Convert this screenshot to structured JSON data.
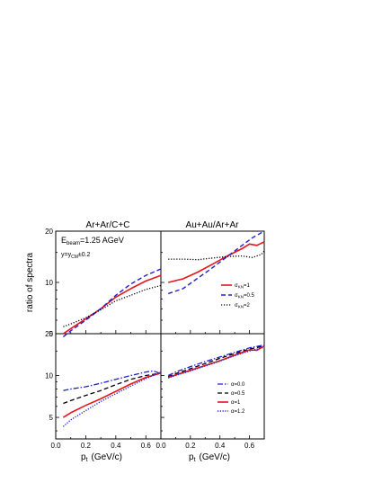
{
  "figure": {
    "ylabel": "ratio of spectra",
    "xlabel_left": "p",
    "xlabel_left_sub": "t",
    "xlabel_left_unit": "(GeV/c)",
    "xlabel_right": "p",
    "xlabel_right_sub": "t",
    "xlabel_right_unit": "(GeV/c)",
    "title_left": "Ar+Ar/C+C",
    "title_right": "Au+Au/Ar+Ar",
    "ebeam_label": "E",
    "ebeam_sub": "beam",
    "ebeam_value": "=1.25  AGeV",
    "y_label_part": "y=y",
    "y_label_sub": "CM",
    "y_label_rest": "±0.2"
  },
  "styles": {
    "red": "#e8141c",
    "blue": "#1f1fd6",
    "black": "#000000",
    "blue_dotted": "#2727e0"
  },
  "chart_data": [
    {
      "id": "top-left",
      "type": "line",
      "title": "Ar+Ar/C+C",
      "xlim": [
        0,
        0.7
      ],
      "ylim": [
        5,
        20
      ],
      "yscale": "log",
      "x_ticks": [
        "0.0",
        "0.2",
        "0.4",
        "0.6"
      ],
      "y_ticks": [
        "5",
        "10",
        "20"
      ],
      "series": [
        {
          "style": "red-solid",
          "x": [
            0.05,
            0.1,
            0.2,
            0.3,
            0.4,
            0.5,
            0.6,
            0.7
          ],
          "y": [
            5.0,
            5.35,
            6.1,
            7.0,
            8.2,
            9.2,
            10.2,
            11.0
          ]
        },
        {
          "style": "blue-dashed",
          "x": [
            0.05,
            0.1,
            0.2,
            0.3,
            0.4,
            0.5,
            0.6,
            0.7
          ],
          "y": [
            4.8,
            5.2,
            6.0,
            7.0,
            8.4,
            9.8,
            11.0,
            12.0
          ]
        },
        {
          "style": "black-dotted",
          "x": [
            0.05,
            0.1,
            0.2,
            0.3,
            0.4,
            0.5,
            0.6,
            0.7
          ],
          "y": [
            5.5,
            5.7,
            6.2,
            6.9,
            7.8,
            8.4,
            9.1,
            9.6
          ]
        }
      ]
    },
    {
      "id": "top-right",
      "type": "line",
      "title": "Au+Au/Ar+Ar",
      "xlim": [
        0,
        0.7
      ],
      "ylim": [
        5,
        20
      ],
      "yscale": "log",
      "x_ticks": [
        "0.0",
        "0.2",
        "0.4",
        "0.6"
      ],
      "y_ticks": [],
      "legend": {
        "entries": [
          {
            "style": "red-solid",
            "label_main": "σ",
            "label_sub": "KN",
            "label_rest": "=1"
          },
          {
            "style": "blue-dashed",
            "label_main": "σ",
            "label_sub": "KN",
            "label_rest": "=0.5"
          },
          {
            "style": "black-dotted",
            "label_main": "σ",
            "label_sub": "KN",
            "label_rest": "=2"
          }
        ]
      },
      "series": [
        {
          "style": "red-solid",
          "x": [
            0.05,
            0.15,
            0.25,
            0.35,
            0.45,
            0.55,
            0.6,
            0.65,
            0.7
          ],
          "y": [
            10.0,
            10.5,
            11.5,
            12.8,
            14.3,
            15.8,
            16.8,
            16.5,
            17.3
          ]
        },
        {
          "style": "blue-dashed",
          "x": [
            0.05,
            0.15,
            0.25,
            0.35,
            0.45,
            0.55,
            0.62,
            0.7
          ],
          "y": [
            8.6,
            9.2,
            10.6,
            12.2,
            14.2,
            16.5,
            18.3,
            20.0
          ]
        },
        {
          "style": "black-dotted",
          "x": [
            0.05,
            0.15,
            0.25,
            0.35,
            0.45,
            0.55,
            0.62,
            0.68,
            0.7
          ],
          "y": [
            13.7,
            13.7,
            13.6,
            13.9,
            14.2,
            14.3,
            14.0,
            14.6,
            15.3
          ]
        }
      ]
    },
    {
      "id": "bottom-left",
      "type": "line",
      "xlim": [
        0,
        0.7
      ],
      "ylim": [
        3.5,
        20
      ],
      "yscale": "log",
      "x_ticks": [
        "0.0",
        "0.2",
        "0.4",
        "0.6"
      ],
      "y_ticks": [
        "5",
        "10",
        "20"
      ],
      "series": [
        {
          "style": "blue-dashdot",
          "x": [
            0.05,
            0.1,
            0.2,
            0.3,
            0.4,
            0.5,
            0.6,
            0.65,
            0.7
          ],
          "y": [
            7.8,
            8.0,
            8.3,
            8.8,
            9.4,
            10.0,
            10.6,
            10.8,
            10.3
          ]
        },
        {
          "style": "black-dashed",
          "x": [
            0.05,
            0.1,
            0.2,
            0.3,
            0.4,
            0.5,
            0.6,
            0.7
          ],
          "y": [
            6.3,
            6.6,
            7.2,
            7.8,
            8.6,
            9.4,
            10.0,
            10.4
          ]
        },
        {
          "style": "red-solid",
          "x": [
            0.05,
            0.1,
            0.2,
            0.3,
            0.4,
            0.5,
            0.6,
            0.7
          ],
          "y": [
            5.0,
            5.4,
            6.1,
            6.8,
            7.7,
            8.7,
            9.7,
            10.4
          ]
        },
        {
          "style": "blue-dotted",
          "x": [
            0.05,
            0.1,
            0.2,
            0.3,
            0.4,
            0.5,
            0.6,
            0.7
          ],
          "y": [
            4.3,
            4.8,
            5.6,
            6.5,
            7.4,
            8.4,
            9.5,
            10.6
          ]
        }
      ]
    },
    {
      "id": "bottom-right",
      "type": "line",
      "xlim": [
        0,
        0.7
      ],
      "ylim": [
        3.5,
        20
      ],
      "yscale": "log",
      "x_ticks": [
        "0.0",
        "0.2",
        "0.4",
        "0.6"
      ],
      "y_ticks": [],
      "legend": {
        "entries": [
          {
            "style": "blue-dashdot",
            "label": "α=0.0"
          },
          {
            "style": "black-dashed",
            "label": "α=0.5"
          },
          {
            "style": "red-solid",
            "label": "α=1"
          },
          {
            "style": "blue-dotted",
            "label": "α=1.2"
          }
        ]
      },
      "series": [
        {
          "style": "blue-dashdot",
          "x": [
            0.05,
            0.1,
            0.2,
            0.3,
            0.4,
            0.5,
            0.6,
            0.7
          ],
          "y": [
            10.0,
            10.6,
            11.6,
            12.6,
            13.6,
            14.7,
            15.8,
            16.6
          ]
        },
        {
          "style": "black-dashed",
          "x": [
            0.05,
            0.1,
            0.2,
            0.3,
            0.4,
            0.5,
            0.6,
            0.7
          ],
          "y": [
            9.8,
            10.3,
            11.2,
            12.2,
            13.3,
            14.4,
            15.5,
            16.3
          ]
        },
        {
          "style": "red-solid",
          "x": [
            0.05,
            0.1,
            0.2,
            0.3,
            0.4,
            0.5,
            0.6,
            0.65,
            0.7
          ],
          "y": [
            9.7,
            10.1,
            10.9,
            11.8,
            12.8,
            14.0,
            15.3,
            15.2,
            16.3
          ]
        },
        {
          "style": "blue-dotted",
          "x": [
            0.05,
            0.1,
            0.2,
            0.3,
            0.4,
            0.5,
            0.6,
            0.7
          ],
          "y": [
            9.6,
            10.0,
            10.8,
            11.7,
            12.7,
            13.9,
            15.0,
            16.0
          ]
        }
      ]
    }
  ]
}
